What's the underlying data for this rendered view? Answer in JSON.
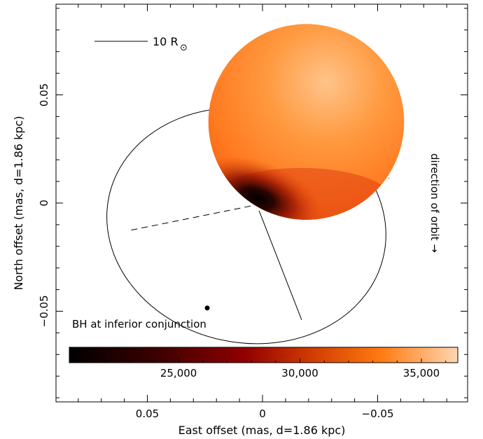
{
  "chart_data": {
    "type": "scatter",
    "xlabel": "East offset (mas, d=1.86 kpc)",
    "ylabel": "North offset (mas, d=1.86 kpc)",
    "x_axis_reversed": true,
    "xlim": [
      0.095,
      -0.095
    ],
    "ylim": [
      -0.092,
      0.092
    ],
    "x_ticks": [
      {
        "value": 0.05,
        "label": "0.05"
      },
      {
        "value": 0,
        "label": "0"
      },
      {
        "value": -0.05,
        "label": "−0.05"
      }
    ],
    "y_ticks": [
      {
        "value": 0.05,
        "label": "0.05"
      },
      {
        "value": 0,
        "label": "0"
      },
      {
        "value": -0.05,
        "label": "−0.05"
      }
    ],
    "grid": false,
    "scale_bar": {
      "label": "10 R",
      "symbol": "⊙"
    },
    "orbit_direction_label": "direction of orbit →",
    "marker_label": "BH at inferior conjunction",
    "marker_point": {
      "x": 0.024,
      "y": -0.0485
    },
    "orbit_ellipse": {
      "center": [
        0.007,
        -0.0105
      ],
      "rx_mas": 0.061,
      "ry_mas": 0.054,
      "rotation_deg": 12
    },
    "node_line": {
      "from": [
        0.057,
        -0.0125
      ],
      "to": [
        -0.055,
        0.0115
      ]
    },
    "periastron_line": {
      "from": [
        0.0015,
        -0.0035
      ],
      "to": [
        -0.017,
        -0.054
      ]
    },
    "star": {
      "center": [
        -0.019,
        0.0375
      ],
      "radius_mas": 0.0425
    },
    "colorbar": {
      "range": [
        20500,
        36500
      ],
      "ticks": [
        {
          "value": 25000,
          "label": "25,000"
        },
        {
          "value": 30000,
          "label": "30,000"
        },
        {
          "value": 35000,
          "label": "35,000"
        }
      ],
      "colors": [
        "#000000",
        "#5a0000",
        "#b02000",
        "#f06000",
        "#ff9a50",
        "#ffd2a8"
      ]
    }
  }
}
